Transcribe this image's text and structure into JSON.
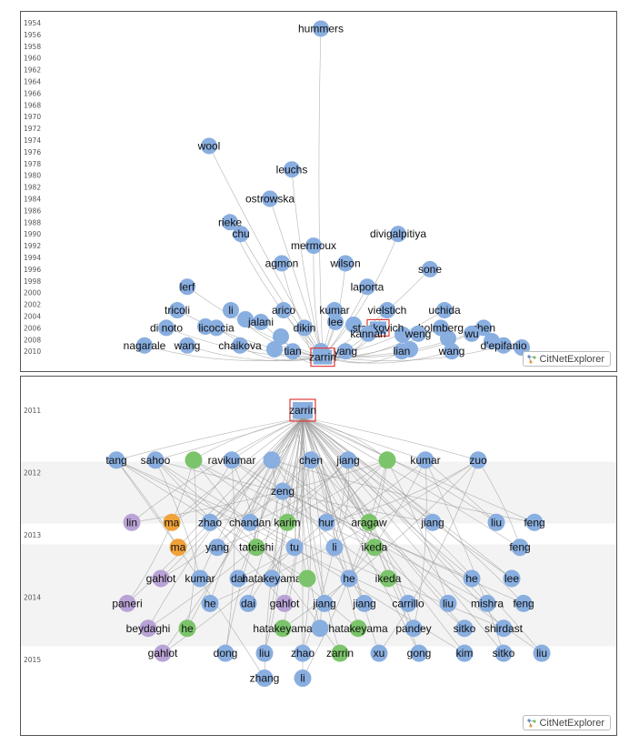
{
  "colors": {
    "blue": "#89aee0",
    "green": "#7cc46b",
    "purple": "#b9a3d6",
    "orange": "#f0a23a",
    "highlight": "#e03c3c",
    "edge": "#9a9a9a"
  },
  "top_panel": {
    "years": [
      "1954",
      "1956",
      "1958",
      "1960",
      "1962",
      "1964",
      "1966",
      "1968",
      "1970",
      "1972",
      "1974",
      "1976",
      "1978",
      "1980",
      "1982",
      "1984",
      "1986",
      "1988",
      "1990",
      "1992",
      "1994",
      "1996",
      "1998",
      "2000",
      "2002",
      "2004",
      "2006",
      "2008",
      "2010"
    ],
    "focus": "zarrin",
    "nodes": [
      {
        "label": "hummers",
        "color": "blue",
        "year": 1955
      },
      {
        "label": "wool",
        "color": "blue",
        "year": 1975
      },
      {
        "label": "leuchs",
        "color": "blue",
        "year": 1979
      },
      {
        "label": "ostrowska",
        "color": "blue",
        "year": 1984
      },
      {
        "label": "rieke",
        "color": "blue",
        "year": 1988
      },
      {
        "label": "chu",
        "color": "blue",
        "year": 1990
      },
      {
        "label": "mermoux",
        "color": "blue",
        "year": 1992
      },
      {
        "label": "divigalpitiya",
        "color": "blue",
        "year": 1990
      },
      {
        "label": "agmon",
        "color": "blue",
        "year": 1995
      },
      {
        "label": "wilson",
        "color": "blue",
        "year": 1995
      },
      {
        "label": "sone",
        "color": "blue",
        "year": 1996
      },
      {
        "label": "lerf",
        "color": "blue",
        "year": 1999
      },
      {
        "label": "laporta",
        "color": "blue",
        "year": 1999
      },
      {
        "label": "tricoli",
        "color": "blue",
        "year": 2003
      },
      {
        "label": "li",
        "color": "blue",
        "year": 2003
      },
      {
        "label": "arico",
        "color": "blue",
        "year": 2003
      },
      {
        "label": "kumar",
        "color": "blue",
        "year": 2003
      },
      {
        "label": "vielstich",
        "color": "blue",
        "year": 2003
      },
      {
        "label": "uchida",
        "color": "blue",
        "year": 2003
      },
      {
        "label": "di noto",
        "color": "blue",
        "year": 2006
      },
      {
        "label": "licoccia",
        "color": "blue",
        "year": 2006
      },
      {
        "label": "jalani",
        "color": "blue",
        "year": 2005
      },
      {
        "label": "lee",
        "color": "blue",
        "year": 2005
      },
      {
        "label": "stankovich",
        "color": "blue",
        "year": 2006
      },
      {
        "label": "holmberg",
        "color": "blue",
        "year": 2006
      },
      {
        "label": "chen",
        "color": "blue",
        "year": 2006
      },
      {
        "label": "dikin",
        "color": "blue",
        "year": 2006
      },
      {
        "label": "kannan",
        "color": "blue",
        "year": 2007
      },
      {
        "label": "weng",
        "color": "blue",
        "year": 2007
      },
      {
        "label": "wu",
        "color": "blue",
        "year": 2007
      },
      {
        "label": "nagarale",
        "color": "blue",
        "year": 2009
      },
      {
        "label": "wang",
        "color": "blue",
        "year": 2009
      },
      {
        "label": "chaikova",
        "color": "blue",
        "year": 2009
      },
      {
        "label": "tian",
        "color": "blue",
        "year": 2010
      },
      {
        "label": "yang",
        "color": "blue",
        "year": 2010
      },
      {
        "label": "lian",
        "color": "blue",
        "year": 2010
      },
      {
        "label": "wang",
        "color": "blue",
        "year": 2010
      },
      {
        "label": "d'epifanio",
        "color": "blue",
        "year": 2009
      },
      {
        "label": "zarrin",
        "color": "blue",
        "year": 2011
      }
    ],
    "logo": "CitNetExplorer"
  },
  "bottom_panel": {
    "years": [
      "2011",
      "2012",
      "2013",
      "2014",
      "2015"
    ],
    "focus": "zarrin",
    "nodes": [
      {
        "label": "zarrin",
        "color": "blue",
        "year": 2011
      },
      {
        "label": "tang",
        "color": "blue",
        "year": 2011.8
      },
      {
        "label": "sahoo",
        "color": "blue",
        "year": 2011.8
      },
      {
        "label": "",
        "color": "green",
        "year": 2011.8
      },
      {
        "label": "ravikumar",
        "color": "blue",
        "year": 2011.8
      },
      {
        "label": "",
        "color": "blue",
        "year": 2011.8
      },
      {
        "label": "chen",
        "color": "blue",
        "year": 2011.8
      },
      {
        "label": "jiang",
        "color": "blue",
        "year": 2011.8
      },
      {
        "label": "",
        "color": "green",
        "year": 2011.8
      },
      {
        "label": "kumar",
        "color": "blue",
        "year": 2011.8
      },
      {
        "label": "zuo",
        "color": "blue",
        "year": 2011.8
      },
      {
        "label": "zeng",
        "color": "blue",
        "year": 2012.3
      },
      {
        "label": "lin",
        "color": "purple",
        "year": 2012.8
      },
      {
        "label": "ma",
        "color": "orange",
        "year": 2012.8
      },
      {
        "label": "zhao",
        "color": "blue",
        "year": 2012.8
      },
      {
        "label": "chandan",
        "color": "blue",
        "year": 2012.8
      },
      {
        "label": "karim",
        "color": "green",
        "year": 2012.8
      },
      {
        "label": "hur",
        "color": "blue",
        "year": 2012.8
      },
      {
        "label": "aragaw",
        "color": "green",
        "year": 2012.8
      },
      {
        "label": "jiang",
        "color": "blue",
        "year": 2012.8
      },
      {
        "label": "liu",
        "color": "blue",
        "year": 2012.8
      },
      {
        "label": "feng",
        "color": "blue",
        "year": 2012.8
      },
      {
        "label": "ma",
        "color": "orange",
        "year": 2013.2
      },
      {
        "label": "yang",
        "color": "blue",
        "year": 2013.2
      },
      {
        "label": "tateishi",
        "color": "green",
        "year": 2013.2
      },
      {
        "label": "tu",
        "color": "blue",
        "year": 2013.2
      },
      {
        "label": "li",
        "color": "blue",
        "year": 2013.2
      },
      {
        "label": "ikeda",
        "color": "green",
        "year": 2013.2
      },
      {
        "label": "feng",
        "color": "blue",
        "year": 2013.2
      },
      {
        "label": "gahlot",
        "color": "purple",
        "year": 2013.7
      },
      {
        "label": "kumar",
        "color": "blue",
        "year": 2013.7
      },
      {
        "label": "dai",
        "color": "blue",
        "year": 2013.7
      },
      {
        "label": "hatakeyama",
        "color": "blue",
        "year": 2013.7
      },
      {
        "label": "",
        "color": "green",
        "year": 2013.7
      },
      {
        "label": "he",
        "color": "blue",
        "year": 2013.7
      },
      {
        "label": "ikeda",
        "color": "green",
        "year": 2013.7
      },
      {
        "label": "he",
        "color": "blue",
        "year": 2013.7
      },
      {
        "label": "lee",
        "color": "blue",
        "year": 2013.7
      },
      {
        "label": "paneri",
        "color": "purple",
        "year": 2014.1
      },
      {
        "label": "he",
        "color": "blue",
        "year": 2014.1
      },
      {
        "label": "dai",
        "color": "blue",
        "year": 2014.1
      },
      {
        "label": "gahlot",
        "color": "purple",
        "year": 2014.1
      },
      {
        "label": "jiang",
        "color": "blue",
        "year": 2014.1
      },
      {
        "label": "jiang",
        "color": "blue",
        "year": 2014.1
      },
      {
        "label": "carrillo",
        "color": "blue",
        "year": 2014.1
      },
      {
        "label": "liu",
        "color": "blue",
        "year": 2014.1
      },
      {
        "label": "mishra",
        "color": "blue",
        "year": 2014.1
      },
      {
        "label": "feng",
        "color": "blue",
        "year": 2014.1
      },
      {
        "label": "beydaghi",
        "color": "purple",
        "year": 2014.5
      },
      {
        "label": "he",
        "color": "green",
        "year": 2014.5
      },
      {
        "label": "hatakeyama",
        "color": "green",
        "year": 2014.5
      },
      {
        "label": "",
        "color": "blue",
        "year": 2014.5
      },
      {
        "label": "hatakeyama",
        "color": "green",
        "year": 2014.5
      },
      {
        "label": "pandey",
        "color": "blue",
        "year": 2014.5
      },
      {
        "label": "sitko",
        "color": "blue",
        "year": 2014.5
      },
      {
        "label": "shirdast",
        "color": "blue",
        "year": 2014.5
      },
      {
        "label": "gahlot",
        "color": "purple",
        "year": 2014.9
      },
      {
        "label": "dong",
        "color": "blue",
        "year": 2014.9
      },
      {
        "label": "liu",
        "color": "blue",
        "year": 2014.9
      },
      {
        "label": "zhao",
        "color": "blue",
        "year": 2014.9
      },
      {
        "label": "zarrin",
        "color": "green",
        "year": 2014.9
      },
      {
        "label": "xu",
        "color": "blue",
        "year": 2014.9
      },
      {
        "label": "gong",
        "color": "blue",
        "year": 2014.9
      },
      {
        "label": "kim",
        "color": "blue",
        "year": 2014.9
      },
      {
        "label": "sitko",
        "color": "blue",
        "year": 2014.9
      },
      {
        "label": "liu",
        "color": "blue",
        "year": 2014.9
      },
      {
        "label": "zhang",
        "color": "blue",
        "year": 2015.3
      },
      {
        "label": "li",
        "color": "blue",
        "year": 2015.3
      }
    ],
    "logo": "CitNetExplorer"
  }
}
